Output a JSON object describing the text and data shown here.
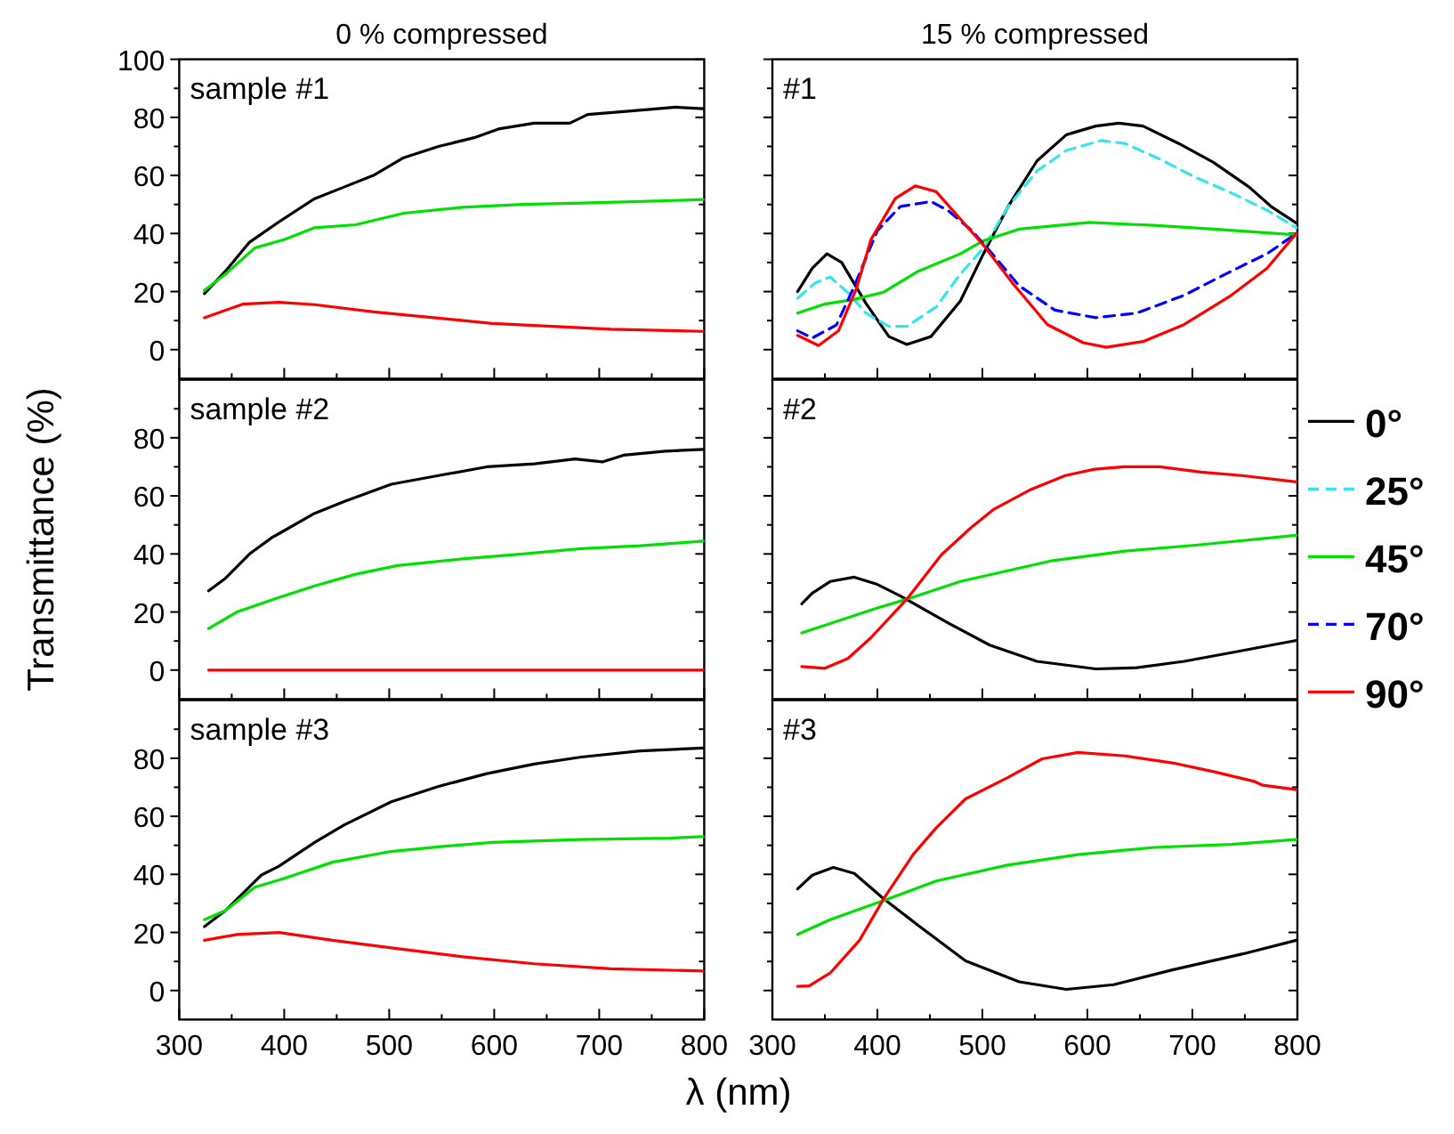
{
  "chart_data": [
    {
      "type": "line",
      "title": "0 % compressed",
      "annotations": [
        "sample #1"
      ],
      "tick_labels": "y",
      "xlim": [
        300,
        800
      ],
      "xticks": [
        300,
        {
          "value": 350,
          "label": null
        },
        400,
        {
          "value": 450,
          "label": null
        },
        500,
        {
          "value": 550,
          "label": null
        },
        600,
        {
          "value": 650,
          "label": null
        },
        700,
        {
          "value": 750,
          "label": null
        },
        800
      ],
      "ylim": [
        -10,
        100
      ],
      "yticks": [
        0,
        {
          "value": 10,
          "label": null
        },
        20,
        {
          "value": 30,
          "label": null
        },
        40,
        {
          "value": 50,
          "label": null
        },
        60,
        {
          "value": 70,
          "label": null
        },
        80,
        {
          "value": 90,
          "label": null
        },
        100
      ],
      "series": [
        {
          "color": "#000000",
          "x": [
            324,
            344,
            367,
            395,
            429,
            457,
            485,
            513,
            547,
            581,
            604,
            638,
            672,
            689,
            723,
            773,
            799
          ],
          "values": [
            19.3,
            27,
            37,
            44,
            52,
            56,
            60,
            66,
            70,
            73,
            76,
            78,
            78,
            81,
            82,
            83.5,
            83
          ]
        },
        {
          "color": "#00e000",
          "x": [
            324,
            344,
            372,
            401,
            429,
            468,
            514,
            570,
            627,
            683,
            739,
            799
          ],
          "values": [
            20.4,
            26,
            35,
            38,
            42,
            43,
            47,
            49,
            50,
            50.5,
            51,
            51.7
          ]
        },
        {
          "color": "#ff0000",
          "x": [
            324,
            361,
            395,
            429,
            485,
            542,
            598,
            655,
            711,
            799
          ],
          "values": [
            11,
            15.7,
            16.3,
            15.5,
            13,
            11,
            9,
            8,
            7,
            6.3
          ]
        }
      ]
    },
    {
      "type": "line",
      "title": "15 % compressed",
      "annotations": [
        "#1"
      ],
      "tick_labels": false,
      "legend": "right",
      "xlim": [
        300,
        800
      ],
      "xticks": [
        300,
        {
          "value": 350,
          "label": null
        },
        400,
        {
          "value": 450,
          "label": null
        },
        500,
        {
          "value": 550,
          "label": null
        },
        600,
        {
          "value": 650,
          "label": null
        },
        700,
        {
          "value": 750,
          "label": null
        },
        800
      ],
      "ylim": [
        -10,
        100
      ],
      "yticks": [
        0,
        {
          "value": 10,
          "label": null
        },
        20,
        {
          "value": 30,
          "label": null
        },
        40,
        {
          "value": 50,
          "label": null
        },
        60,
        {
          "value": 70,
          "label": null
        },
        80,
        {
          "value": 90,
          "label": null
        },
        100
      ],
      "series": [
        {
          "name": "0°",
          "color": "#000000",
          "line_style": "solid",
          "x": [
            324,
            338,
            352,
            366,
            389,
            411,
            428,
            451,
            479,
            501,
            524,
            552,
            580,
            608,
            630,
            653,
            687,
            720,
            754,
            776,
            799
          ],
          "values": [
            20,
            28,
            33,
            30,
            16,
            4.5,
            1.8,
            4.5,
            16.7,
            33,
            49,
            65,
            74,
            77,
            78,
            77,
            71,
            64.5,
            56,
            49,
            43.6
          ]
        },
        {
          "name": "25°",
          "color": "#33e6ee",
          "line_style": "dashed",
          "x": [
            324,
            341,
            355,
            372,
            389,
            411,
            428,
            456,
            479,
            501,
            524,
            552,
            580,
            613,
            636,
            669,
            702,
            737,
            771,
            799
          ],
          "values": [
            17.7,
            23,
            25,
            19.6,
            12.6,
            8,
            8,
            14.7,
            26,
            35,
            49,
            61.5,
            68.6,
            72,
            71,
            65.6,
            59.5,
            54,
            48,
            42
          ]
        },
        {
          "name": "45°",
          "color": "#00e000",
          "line_style": "solid",
          "x": [
            324,
            350,
            378,
            406,
            439,
            479,
            501,
            535,
            602,
            663,
            720,
            799
          ],
          "values": [
            12.6,
            15.7,
            17.3,
            19.8,
            27,
            33,
            37.5,
            41.5,
            43.8,
            42.8,
            41.5,
            39.5
          ]
        },
        {
          "name": "70°",
          "color": "#0000ff",
          "line_style": "dashed",
          "x": [
            324,
            338,
            361,
            377,
            400,
            422,
            451,
            467,
            490,
            507,
            535,
            569,
            608,
            647,
            692,
            737,
            771,
            799
          ],
          "values": [
            6.5,
            4,
            8.5,
            21,
            41,
            49.3,
            51,
            48,
            41,
            34,
            22,
            13.6,
            11,
            12.6,
            18.7,
            27,
            33,
            40
          ]
        },
        {
          "name": "90°",
          "color": "#ff0000",
          "line_style": "solid",
          "x": [
            324,
            344,
            363,
            380,
            394,
            417,
            436,
            456,
            479,
            501,
            529,
            562,
            596,
            618,
            653,
            692,
            737,
            771,
            799
          ],
          "values": [
            4.9,
            1.4,
            6.5,
            21,
            38,
            52,
            56.4,
            54.4,
            45,
            36,
            22.8,
            8.6,
            2.4,
            0.8,
            2.8,
            8.6,
            18.7,
            28,
            40
          ]
        }
      ]
    },
    {
      "type": "line",
      "ylabel": "Transmittance (%)",
      "annotations": [
        "sample #2"
      ],
      "tick_labels": "y",
      "xlim": [
        300,
        800
      ],
      "xticks": [
        300,
        {
          "value": 350,
          "label": null
        },
        400,
        {
          "value": 450,
          "label": null
        },
        500,
        {
          "value": 550,
          "label": null
        },
        600,
        {
          "value": 650,
          "label": null
        },
        700,
        {
          "value": 750,
          "label": null
        },
        800
      ],
      "ylim": [
        -10,
        100
      ],
      "yticks": [
        0,
        {
          "value": 10,
          "label": null
        },
        20,
        {
          "value": 30,
          "label": null
        },
        40,
        {
          "value": 50,
          "label": null
        },
        60,
        {
          "value": 70,
          "label": null
        },
        80,
        {
          "value": 90,
          "label": null
        }
      ],
      "series": [
        {
          "color": "#000000",
          "x": [
            328,
            344,
            367,
            389,
            395,
            429,
            457,
            502,
            547,
            593,
            638,
            677,
            703,
            723,
            763,
            799
          ],
          "values": [
            27.3,
            31.6,
            40,
            45.8,
            47,
            54,
            58,
            64,
            67,
            70,
            71,
            72.7,
            71.7,
            74,
            75.4,
            76
          ]
        },
        {
          "color": "#00e000",
          "x": [
            328,
            355,
            395,
            429,
            468,
            508,
            570,
            627,
            683,
            739,
            799
          ],
          "values": [
            14.3,
            20,
            25,
            29,
            33,
            36,
            38.3,
            40,
            41.8,
            42.8,
            44.4
          ]
        },
        {
          "color": "#ff0000",
          "x": [
            328,
            799
          ],
          "values": [
            0,
            0
          ]
        }
      ]
    },
    {
      "type": "line",
      "annotations": [
        "#2"
      ],
      "tick_labels": false,
      "xlim": [
        300,
        800
      ],
      "xticks": [
        300,
        {
          "value": 350,
          "label": null
        },
        400,
        {
          "value": 450,
          "label": null
        },
        500,
        {
          "value": 550,
          "label": null
        },
        600,
        {
          "value": 650,
          "label": null
        },
        700,
        {
          "value": 750,
          "label": null
        },
        800
      ],
      "ylim": [
        -10,
        100
      ],
      "yticks": [
        0,
        {
          "value": 10,
          "label": null
        },
        20,
        {
          "value": 30,
          "label": null
        },
        40,
        {
          "value": 50,
          "label": null
        },
        60,
        {
          "value": 70,
          "label": null
        },
        80,
        {
          "value": 90,
          "label": null
        }
      ],
      "series": [
        {
          "color": "#000000",
          "x": [
            328,
            338,
            355,
            378,
            400,
            422,
            467,
            507,
            552,
            608,
            647,
            692,
            737,
            799
          ],
          "values": [
            22.8,
            26.5,
            30.5,
            32,
            29.5,
            25.5,
            16.3,
            8.6,
            3,
            0.4,
            0.8,
            3,
            6,
            10.2
          ]
        },
        {
          "color": "#00e000",
          "x": [
            328,
            366,
            400,
            428,
            479,
            524,
            567,
            636,
            703,
            799
          ],
          "values": [
            12.8,
            17.3,
            21.4,
            24.4,
            30.5,
            34.2,
            37.7,
            41,
            43,
            46.4
          ]
        },
        {
          "color": "#ff0000",
          "x": [
            328,
            350,
            372,
            394,
            428,
            461,
            489,
            511,
            545,
            579,
            607,
            635,
            669,
            708,
            747,
            799
          ],
          "values": [
            1.2,
            0.6,
            4,
            11.2,
            24.4,
            39.7,
            49,
            55.4,
            62,
            67,
            69.2,
            70,
            70,
            68.2,
            67,
            64.8
          ]
        }
      ]
    },
    {
      "type": "line",
      "xlabel": "λ (nm)",
      "annotations": [
        "sample #3"
      ],
      "xlim": [
        300,
        800
      ],
      "xticks": [
        300,
        {
          "value": 350,
          "label": null
        },
        400,
        {
          "value": 450,
          "label": null
        },
        500,
        {
          "value": 550,
          "label": null
        },
        600,
        {
          "value": 650,
          "label": null
        },
        700,
        {
          "value": 750,
          "label": null
        },
        800
      ],
      "ylim": [
        -10,
        100
      ],
      "yticks": [
        0,
        {
          "value": 10,
          "label": null
        },
        20,
        {
          "value": 30,
          "label": null
        },
        40,
        {
          "value": 50,
          "label": null
        },
        60,
        {
          "value": 70,
          "label": null
        },
        80,
        {
          "value": 90,
          "label": null
        }
      ],
      "series": [
        {
          "color": "#000000",
          "x": [
            324,
            344,
            378,
            395,
            429,
            457,
            502,
            547,
            593,
            638,
            683,
            739,
            799
          ],
          "values": [
            22,
            27.5,
            39.7,
            42.8,
            51,
            57,
            65,
            70.3,
            74.7,
            78,
            80.4,
            82.5,
            83.5
          ]
        },
        {
          "color": "#00e000",
          "x": [
            324,
            344,
            372,
            401,
            446,
            502,
            547,
            598,
            683,
            768,
            799
          ],
          "values": [
            24.4,
            27.5,
            35.6,
            38.7,
            44.2,
            47.9,
            49.5,
            51,
            52,
            52.5,
            53
          ]
        },
        {
          "color": "#ff0000",
          "x": [
            324,
            355,
            395,
            446,
            502,
            570,
            638,
            711,
            799
          ],
          "values": [
            17.3,
            19.3,
            20,
            17.3,
            14.7,
            11.6,
            9.2,
            7.5,
            6.7
          ]
        }
      ]
    },
    {
      "type": "line",
      "annotations": [
        "#3"
      ],
      "tick_labels": "x",
      "xlim": [
        300,
        800
      ],
      "xticks": [
        300,
        {
          "value": 350,
          "label": null
        },
        400,
        {
          "value": 450,
          "label": null
        },
        500,
        {
          "value": 550,
          "label": null
        },
        600,
        {
          "value": 650,
          "label": null
        },
        700,
        {
          "value": 750,
          "label": null
        },
        800
      ],
      "ylim": [
        -10,
        100
      ],
      "yticks": [
        0,
        {
          "value": 10,
          "label": null
        },
        20,
        {
          "value": 30,
          "label": null
        },
        40,
        {
          "value": 50,
          "label": null
        },
        60,
        {
          "value": 70,
          "label": null
        },
        80,
        {
          "value": 90,
          "label": null
        }
      ],
      "series": [
        {
          "color": "#000000",
          "x": [
            324,
            338,
            358,
            378,
            406,
            439,
            484,
            535,
            580,
            625,
            681,
            748,
            799
          ],
          "values": [
            35,
            39.7,
            42.4,
            40.3,
            31.6,
            22.4,
            10.2,
            3,
            0.4,
            2,
            7.1,
            12.6,
            17.3
          ]
        },
        {
          "color": "#00e000",
          "x": [
            324,
            355,
            406,
            456,
            524,
            591,
            664,
            737,
            799
          ],
          "values": [
            19.3,
            24.4,
            31,
            37.7,
            43.2,
            46.8,
            49.3,
            50.3,
            52
          ]
        },
        {
          "color": "#ff0000",
          "x": [
            324,
            335,
            355,
            383,
            406,
            434,
            456,
            484,
            524,
            557,
            591,
            636,
            681,
            720,
            759,
            767,
            799
          ],
          "values": [
            1.4,
            1.6,
            6,
            17.3,
            31.6,
            46.8,
            56,
            66,
            73.3,
            79.8,
            82,
            80.8,
            78.4,
            75.4,
            72,
            70.7,
            69.2
          ]
        }
      ]
    }
  ]
}
